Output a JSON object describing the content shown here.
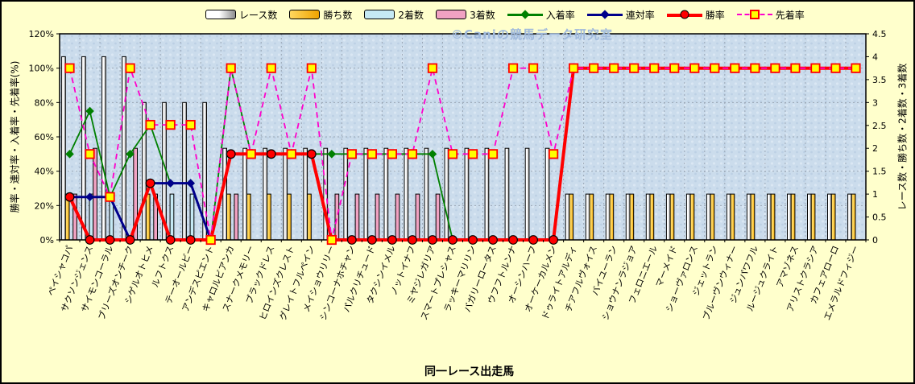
{
  "watermark": "©Caniの競馬データ研究室",
  "x_title": "同一レース出走馬",
  "y_left": {
    "title": "勝率・連対率・入着率・先着率(%)",
    "min": 0,
    "max": 120,
    "ticks": [
      "0%",
      "20%",
      "40%",
      "60%",
      "80%",
      "100%",
      "120%"
    ]
  },
  "y_right": {
    "title": "レース数・勝ち数・2着数・3着数",
    "min": 0,
    "max": 4.5,
    "ticks": [
      "0",
      "0.5",
      "1",
      "1.5",
      "2",
      "2.5",
      "3",
      "3.5",
      "4",
      "4.5"
    ]
  },
  "legend": [
    {
      "label": "レース数",
      "type": "bar",
      "fill": "white-gray-gradient"
    },
    {
      "label": "勝ち数",
      "type": "bar",
      "fill": "yellow-gradient"
    },
    {
      "label": "2着数",
      "type": "bar",
      "fill": "#C5E9F4"
    },
    {
      "label": "3着数",
      "type": "bar",
      "fill": "#F1A2C2"
    },
    {
      "label": "入着率",
      "type": "line",
      "color": "#008000",
      "marker": "diamond"
    },
    {
      "label": "連対率",
      "type": "line",
      "color": "#00008B",
      "marker": "diamond"
    },
    {
      "label": "勝率",
      "type": "line",
      "color": "#FF0000",
      "marker": "circle"
    },
    {
      "label": "先着率",
      "type": "line",
      "color": "#FF00CC",
      "marker": "square",
      "dashed": true
    }
  ],
  "colors": {
    "plot_bg": "#CBDCEC",
    "grid": "#9AA6B5",
    "axis": "#000000",
    "bar_race_light": "#FFFFFF",
    "bar_race_dark": "#8E8E8E",
    "bar_win_light": "#FFD75E",
    "bar_win_dark": "#EFA300",
    "bar_second": "#C5E9F4",
    "bar_third": "#F1A2C2",
    "line_place": "#008000",
    "line_quinella": "#00008B",
    "line_win": "#FF0000",
    "line_ahead": "#FF00CC",
    "marker_square_fill": "#FFFF00",
    "marker_square_edge": "#FF0000"
  },
  "chart_data": {
    "type": "bar+line combo",
    "title": "",
    "xlabel": "同一レース出走馬",
    "ylabel_left": "勝率・連対率・入着率・先着率(%)",
    "ylabel_right": "レース数・勝ち数・2着数・3着数",
    "ylim_left": [
      0,
      120
    ],
    "ylim_right": [
      0,
      4.5
    ],
    "grid": true,
    "legend_position": "top",
    "categories": [
      "ペイシャコパ",
      "サクソンジェンス",
      "サイモンコーラル",
      "ブリーズオンチーク",
      "シゲルオトヒメ",
      "ルフトクス",
      "テーオールビー",
      "アンデスピエント",
      "キャロルビアンカ",
      "スナークメモリー",
      "ブラックドレス",
      "ヒロインズクレスト",
      "グレイトフルペイン",
      "メイショウリリー",
      "シンコーナホチャン",
      "パルクリチュード",
      "タクシンイメル",
      "ノットイナフ",
      "ミヤジレガリア",
      "スマートプレシャス",
      "ラッキーマリリン",
      "バガリーロータス",
      "ウフフトルンナ",
      "オーシンハーフ",
      "オーケーカルメン",
      "ドゥライトアルディ",
      "チアフルヴォイス",
      "バイユーラン",
      "ショウナンラジョア",
      "フェロニエール",
      "マーメイド",
      "ショーヴァロンス",
      "ジェットラン",
      "ブルーヴンウィナー",
      "ジュンパワフル",
      "ルージュクライト",
      "アマゾネス",
      "アリストクラシア",
      "カフェアローロ",
      "エメラルドフィジー"
    ],
    "bar_series": [
      {
        "name": "レース数",
        "axis": "right",
        "fill": "white-gray-gradient",
        "values": [
          4,
          4,
          4,
          4,
          3,
          3,
          3,
          3,
          2,
          2,
          2,
          2,
          2,
          2,
          2,
          2,
          2,
          2,
          2,
          2,
          2,
          2,
          2,
          2,
          2,
          1,
          1,
          1,
          1,
          1,
          1,
          1,
          1,
          1,
          1,
          1,
          1,
          1,
          1,
          1
        ]
      },
      {
        "name": "勝ち数",
        "axis": "right",
        "fill": "yellow-gradient",
        "values": [
          1,
          0,
          0,
          0,
          1,
          0,
          0,
          0,
          1,
          1,
          1,
          1,
          1,
          0,
          0,
          0,
          0,
          0,
          0,
          0,
          0,
          0,
          0,
          0,
          0,
          1,
          1,
          1,
          1,
          1,
          1,
          1,
          1,
          1,
          1,
          1,
          1,
          1,
          1,
          1
        ]
      },
      {
        "name": "2着数",
        "axis": "right",
        "fill": "#C5E9F4",
        "values": [
          0,
          1,
          1,
          0,
          0,
          1,
          1,
          0,
          0,
          0,
          0,
          0,
          0,
          0,
          0,
          0,
          0,
          0,
          0,
          0,
          0,
          0,
          0,
          0,
          0,
          0,
          0,
          0,
          0,
          0,
          0,
          0,
          0,
          0,
          0,
          0,
          0,
          0,
          0,
          0
        ]
      },
      {
        "name": "3着数",
        "axis": "right",
        "fill": "#F1A2C2",
        "values": [
          1,
          2,
          0,
          2,
          1,
          0,
          0,
          0,
          1,
          0,
          0,
          0,
          0,
          1,
          1,
          1,
          1,
          1,
          1,
          0,
          0,
          0,
          0,
          0,
          0,
          0,
          0,
          0,
          0,
          0,
          0,
          0,
          0,
          0,
          0,
          0,
          0,
          0,
          0,
          0
        ]
      }
    ],
    "line_series": [
      {
        "name": "入着率",
        "axis": "left",
        "color": "#008000",
        "marker": "diamond",
        "width": 1.8,
        "values": [
          50,
          75,
          25,
          50,
          67,
          33,
          33,
          0,
          100,
          50,
          50,
          50,
          50,
          50,
          50,
          50,
          50,
          50,
          50,
          0,
          0,
          0,
          0,
          0,
          0,
          100,
          100,
          100,
          100,
          100,
          100,
          100,
          100,
          100,
          100,
          100,
          100,
          100,
          100,
          100
        ]
      },
      {
        "name": "連対率",
        "axis": "left",
        "color": "#00008B",
        "marker": "diamond",
        "width": 3,
        "values": [
          25,
          25,
          25,
          0,
          33,
          33,
          33,
          0,
          50,
          50,
          50,
          50,
          50,
          0,
          0,
          0,
          0,
          0,
          0,
          0,
          0,
          0,
          0,
          0,
          0,
          100,
          100,
          100,
          100,
          100,
          100,
          100,
          100,
          100,
          100,
          100,
          100,
          100,
          100,
          100
        ]
      },
      {
        "name": "勝率",
        "axis": "left",
        "color": "#FF0000",
        "marker": "circle",
        "width": 4,
        "values": [
          25,
          0,
          0,
          0,
          33,
          0,
          0,
          0,
          50,
          50,
          50,
          50,
          50,
          0,
          0,
          0,
          0,
          0,
          0,
          0,
          0,
          0,
          0,
          0,
          0,
          100,
          100,
          100,
          100,
          100,
          100,
          100,
          100,
          100,
          100,
          100,
          100,
          100,
          100,
          100
        ]
      },
      {
        "name": "先着率",
        "axis": "left",
        "color": "#FF00CC",
        "marker": "square",
        "width": 1.8,
        "dashed": true,
        "values": [
          100,
          50,
          25,
          100,
          67,
          67,
          67,
          0,
          100,
          50,
          100,
          50,
          100,
          0,
          50,
          50,
          50,
          50,
          100,
          50,
          50,
          50,
          100,
          100,
          50,
          100,
          100,
          100,
          100,
          100,
          100,
          100,
          100,
          100,
          100,
          100,
          100,
          100,
          100,
          100
        ]
      }
    ]
  }
}
